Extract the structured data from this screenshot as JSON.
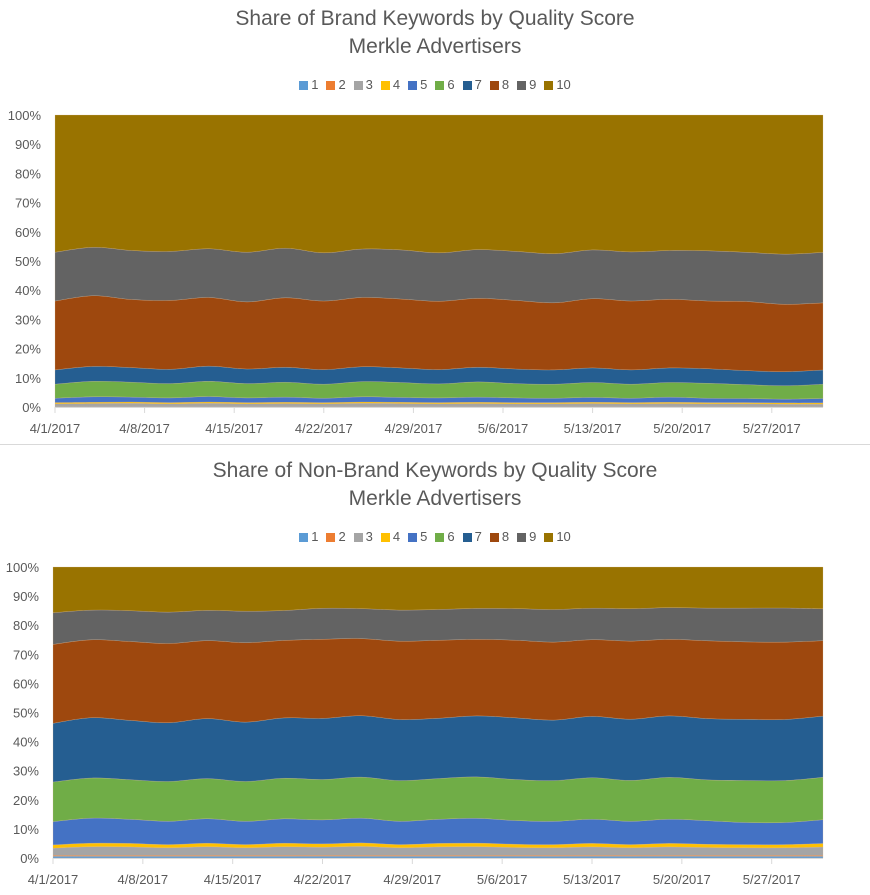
{
  "chart_data": [
    {
      "type": "area",
      "stacked": "percent",
      "title": "Share of Brand Keywords by Quality Score",
      "subtitle": "Merkle Advertisers",
      "xlabel": "",
      "ylabel": "",
      "ylim": [
        0,
        100
      ],
      "y_ticks": [
        "0%",
        "10%",
        "20%",
        "30%",
        "40%",
        "50%",
        "60%",
        "70%",
        "80%",
        "90%",
        "100%"
      ],
      "x_ticks": [
        "4/1/2017",
        "4/8/2017",
        "4/15/2017",
        "4/22/2017",
        "4/29/2017",
        "5/6/2017",
        "5/13/2017",
        "5/20/2017",
        "5/27/2017"
      ],
      "legend_position": "top",
      "x_day_range": [
        0,
        60
      ],
      "x_days": [
        0,
        3,
        6,
        9,
        12,
        15,
        18,
        21,
        24,
        27,
        30,
        33,
        36,
        39,
        42,
        45,
        48,
        51,
        54,
        57,
        60
      ],
      "series": [
        {
          "name": "1",
          "color": "#5b9bd5",
          "values": [
            0.2,
            0.2,
            0.2,
            0.2,
            0.2,
            0.2,
            0.2,
            0.2,
            0.2,
            0.2,
            0.2,
            0.2,
            0.2,
            0.2,
            0.2,
            0.2,
            0.2,
            0.2,
            0.2,
            0.2,
            0.2
          ]
        },
        {
          "name": "2",
          "color": "#ed7d31",
          "values": [
            0.1,
            0.1,
            0.1,
            0.1,
            0.1,
            0.1,
            0.1,
            0.1,
            0.1,
            0.1,
            0.1,
            0.1,
            0.1,
            0.1,
            0.1,
            0.1,
            0.1,
            0.1,
            0.1,
            0.1,
            0.1
          ]
        },
        {
          "name": "3",
          "color": "#a5a5a5",
          "values": [
            0.8,
            0.9,
            1.0,
            0.8,
            1.0,
            0.8,
            0.9,
            0.8,
            1.0,
            0.9,
            0.8,
            0.9,
            0.8,
            0.8,
            0.9,
            0.8,
            0.9,
            0.8,
            0.8,
            0.7,
            0.7
          ]
        },
        {
          "name": "4",
          "color": "#ffc000",
          "values": [
            0.4,
            0.4,
            0.4,
            0.4,
            0.4,
            0.4,
            0.4,
            0.4,
            0.4,
            0.4,
            0.4,
            0.4,
            0.4,
            0.4,
            0.4,
            0.4,
            0.4,
            0.4,
            0.4,
            0.4,
            0.4
          ]
        },
        {
          "name": "5",
          "color": "#4472c4",
          "values": [
            1.5,
            1.9,
            1.7,
            1.6,
            1.9,
            1.6,
            1.8,
            1.5,
            1.8,
            1.7,
            1.6,
            1.8,
            1.6,
            1.5,
            1.7,
            1.5,
            1.8,
            1.5,
            1.4,
            1.3,
            1.5
          ]
        },
        {
          "name": "6",
          "color": "#70ad47",
          "values": [
            4.8,
            5.3,
            5.1,
            4.9,
            5.2,
            4.9,
            5.1,
            4.8,
            5.2,
            5.1,
            4.8,
            5.2,
            4.9,
            4.8,
            5.1,
            4.8,
            5.0,
            5.1,
            4.8,
            4.6,
            4.9
          ]
        },
        {
          "name": "7",
          "color": "#255e91",
          "values": [
            4.9,
            5.1,
            5.0,
            4.9,
            5.2,
            5.0,
            5.1,
            5.0,
            5.1,
            5.0,
            4.9,
            5.0,
            5.0,
            4.9,
            5.0,
            4.9,
            5.0,
            5.0,
            4.8,
            4.8,
            4.9
          ]
        },
        {
          "name": "8",
          "color": "#9e480e",
          "values": [
            23.6,
            24.2,
            23.3,
            23.6,
            23.5,
            23.0,
            23.8,
            23.5,
            23.7,
            23.6,
            23.4,
            23.6,
            23.5,
            23.0,
            23.7,
            23.6,
            23.5,
            23.2,
            23.7,
            23.1,
            23.0
          ]
        },
        {
          "name": "9",
          "color": "#636363",
          "values": [
            16.7,
            16.6,
            16.8,
            16.8,
            16.7,
            17.0,
            17.0,
            16.5,
            16.6,
            16.8,
            16.6,
            16.7,
            16.8,
            16.8,
            16.7,
            16.8,
            16.7,
            17.2,
            16.9,
            17.2,
            17.3
          ]
        },
        {
          "name": "10",
          "color": "#997300",
          "values": [
            47.0,
            45.3,
            46.4,
            46.7,
            45.8,
            47.0,
            45.6,
            47.2,
            45.9,
            46.2,
            47.2,
            46.1,
            46.7,
            47.5,
            46.2,
            46.9,
            46.4,
            46.5,
            47.1,
            47.7,
            47.1
          ]
        }
      ]
    },
    {
      "type": "area",
      "stacked": "percent",
      "title": "Share of Non-Brand Keywords by Quality Score",
      "subtitle": "Merkle Advertisers",
      "xlabel": "",
      "ylabel": "",
      "ylim": [
        0,
        100
      ],
      "y_ticks": [
        "0%",
        "10%",
        "20%",
        "30%",
        "40%",
        "50%",
        "60%",
        "70%",
        "80%",
        "90%",
        "100%"
      ],
      "x_ticks": [
        "4/1/2017",
        "4/8/2017",
        "4/15/2017",
        "4/22/2017",
        "4/29/2017",
        "5/6/2017",
        "5/13/2017",
        "5/20/2017",
        "5/27/2017"
      ],
      "legend_position": "top",
      "x_day_range": [
        0,
        60
      ],
      "x_days": [
        0,
        3,
        6,
        9,
        12,
        15,
        18,
        21,
        24,
        27,
        30,
        33,
        36,
        39,
        42,
        45,
        48,
        51,
        54,
        57,
        60
      ],
      "series": [
        {
          "name": "1",
          "color": "#5b9bd5",
          "values": [
            0.6,
            0.6,
            0.6,
            0.6,
            0.6,
            0.6,
            0.6,
            0.6,
            0.6,
            0.6,
            0.6,
            0.6,
            0.6,
            0.6,
            0.6,
            0.6,
            0.6,
            0.6,
            0.6,
            0.6,
            0.6
          ]
        },
        {
          "name": "2",
          "color": "#ed7d31",
          "values": [
            0.3,
            0.3,
            0.3,
            0.3,
            0.3,
            0.3,
            0.3,
            0.3,
            0.3,
            0.3,
            0.3,
            0.3,
            0.3,
            0.3,
            0.3,
            0.3,
            0.3,
            0.3,
            0.3,
            0.3,
            0.3
          ]
        },
        {
          "name": "3",
          "color": "#a5a5a5",
          "values": [
            2.5,
            3.0,
            2.9,
            2.6,
            3.0,
            2.6,
            3.0,
            2.8,
            3.1,
            2.6,
            2.9,
            3.0,
            2.7,
            2.6,
            2.9,
            2.6,
            2.9,
            2.7,
            2.6,
            2.6,
            2.9
          ]
        },
        {
          "name": "4",
          "color": "#ffc000",
          "values": [
            1.1,
            1.2,
            1.2,
            1.1,
            1.2,
            1.1,
            1.2,
            1.1,
            1.2,
            1.1,
            1.2,
            1.2,
            1.1,
            1.1,
            1.2,
            1.1,
            1.2,
            1.1,
            1.1,
            1.1,
            1.2
          ]
        },
        {
          "name": "5",
          "color": "#4472c4",
          "values": [
            8.0,
            8.6,
            8.3,
            8.0,
            8.4,
            8.0,
            8.4,
            8.2,
            8.5,
            8.0,
            8.3,
            8.5,
            8.1,
            8.0,
            8.3,
            8.0,
            8.3,
            8.1,
            7.6,
            7.6,
            8.2
          ]
        },
        {
          "name": "6",
          "color": "#70ad47",
          "values": [
            13.6,
            13.8,
            13.6,
            13.7,
            13.8,
            13.7,
            14.0,
            13.8,
            14.1,
            14.0,
            14.0,
            14.2,
            14.0,
            14.0,
            14.2,
            14.0,
            14.3,
            14.0,
            14.4,
            14.4,
            14.6
          ]
        },
        {
          "name": "7",
          "color": "#255e91",
          "values": [
            20.2,
            20.7,
            20.4,
            20.2,
            20.6,
            20.4,
            20.8,
            20.9,
            21.1,
            21.0,
            20.7,
            20.9,
            21.1,
            20.8,
            21.0,
            21.0,
            21.1,
            21.0,
            21.0,
            21.0,
            21.1
          ]
        },
        {
          "name": "8",
          "color": "#9e480e",
          "values": [
            27.1,
            26.8,
            27.1,
            27.2,
            26.8,
            27.3,
            26.7,
            27.0,
            26.5,
            26.9,
            26.8,
            26.2,
            26.5,
            26.8,
            26.3,
            26.8,
            26.2,
            26.7,
            26.6,
            26.6,
            26.0
          ]
        },
        {
          "name": "9",
          "color": "#636363",
          "values": [
            10.9,
            10.2,
            10.6,
            10.8,
            10.4,
            10.8,
            10.3,
            10.6,
            10.3,
            10.7,
            10.6,
            10.6,
            10.8,
            11.2,
            10.8,
            11.1,
            10.9,
            11.2,
            11.6,
            11.7,
            11.0
          ]
        },
        {
          "name": "10",
          "color": "#997300",
          "values": [
            15.7,
            14.8,
            15.0,
            15.5,
            14.9,
            15.2,
            15.0,
            14.1,
            14.3,
            14.8,
            14.6,
            14.2,
            14.2,
            14.6,
            14.1,
            14.3,
            13.9,
            14.1,
            14.1,
            14.1,
            14.4
          ]
        }
      ]
    }
  ]
}
